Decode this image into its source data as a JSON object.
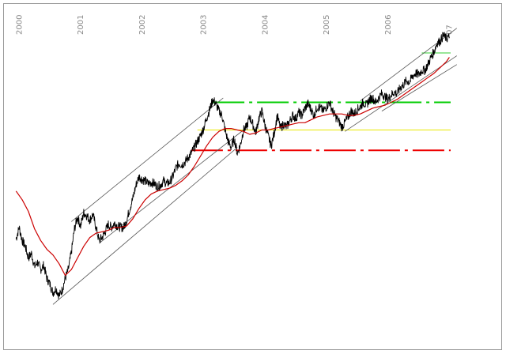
{
  "chart_data": {
    "type": "line",
    "title": "",
    "xlabel": "",
    "ylabel": "",
    "x_range": [
      1999.97,
      2007.07
    ],
    "y_range": [
      0,
      100
    ],
    "grid": false,
    "legend": "none",
    "year_ticks": [
      {
        "year": 2000,
        "label": "2000"
      },
      {
        "year": 2001,
        "label": "2001"
      },
      {
        "year": 2002,
        "label": "2002"
      },
      {
        "year": 2003,
        "label": "2003"
      },
      {
        "year": 2004,
        "label": "2004"
      },
      {
        "year": 2005,
        "label": "2005"
      },
      {
        "year": 2006,
        "label": "2006"
      },
      {
        "year": 2007,
        "label": "07"
      }
    ],
    "series": [
      {
        "kind": "price",
        "color": "#000000",
        "values": [
          [
            2000.0,
            26.5
          ],
          [
            2000.05,
            30.5
          ],
          [
            2000.1,
            26.0
          ],
          [
            2000.15,
            24.0
          ],
          [
            2000.2,
            20.0
          ],
          [
            2000.25,
            21.5
          ],
          [
            2000.3,
            17.0
          ],
          [
            2000.35,
            18.5
          ],
          [
            2000.4,
            16.0
          ],
          [
            2000.45,
            17.5
          ],
          [
            2000.5,
            13.0
          ],
          [
            2000.55,
            11.0
          ],
          [
            2000.6,
            8.0
          ],
          [
            2000.65,
            9.5
          ],
          [
            2000.7,
            7.0
          ],
          [
            2000.75,
            9.0
          ],
          [
            2000.8,
            13.0
          ],
          [
            2000.85,
            16.0
          ],
          [
            2000.9,
            22.0
          ],
          [
            2000.95,
            30.0
          ],
          [
            2001.0,
            34.0
          ],
          [
            2001.05,
            31.0
          ],
          [
            2001.1,
            35.5
          ],
          [
            2001.15,
            34.5
          ],
          [
            2001.2,
            33.0
          ],
          [
            2001.25,
            35.0
          ],
          [
            2001.3,
            30.5
          ],
          [
            2001.35,
            26.0
          ],
          [
            2001.4,
            27.0
          ],
          [
            2001.45,
            29.0
          ],
          [
            2001.5,
            31.5
          ],
          [
            2001.55,
            30.5
          ],
          [
            2001.6,
            32.0
          ],
          [
            2001.65,
            31.0
          ],
          [
            2001.7,
            30.5
          ],
          [
            2001.75,
            30.5
          ],
          [
            2001.8,
            33.0
          ],
          [
            2001.85,
            37.0
          ],
          [
            2001.9,
            40.5
          ],
          [
            2001.95,
            45.0
          ],
          [
            2002.0,
            48.0
          ],
          [
            2002.05,
            47.0
          ],
          [
            2002.1,
            46.5
          ],
          [
            2002.15,
            45.5
          ],
          [
            2002.2,
            46.0
          ],
          [
            2002.25,
            45.5
          ],
          [
            2002.3,
            44.5
          ],
          [
            2002.35,
            45.0
          ],
          [
            2002.4,
            46.5
          ],
          [
            2002.45,
            45.5
          ],
          [
            2002.5,
            46.0
          ],
          [
            2002.55,
            48.0
          ],
          [
            2002.6,
            51.0
          ],
          [
            2002.65,
            52.5
          ],
          [
            2002.7,
            52.0
          ],
          [
            2002.75,
            53.0
          ],
          [
            2002.8,
            54.5
          ],
          [
            2002.85,
            56.0
          ],
          [
            2002.9,
            58.0
          ],
          [
            2002.95,
            60.0
          ],
          [
            2003.0,
            62.0
          ],
          [
            2003.05,
            64.5
          ],
          [
            2003.1,
            68.0
          ],
          [
            2003.15,
            71.0
          ],
          [
            2003.2,
            74.5
          ],
          [
            2003.25,
            73.0
          ],
          [
            2003.3,
            70.5
          ],
          [
            2003.35,
            69.0
          ],
          [
            2003.4,
            64.0
          ],
          [
            2003.45,
            60.0
          ],
          [
            2003.5,
            58.0
          ],
          [
            2003.55,
            61.0
          ],
          [
            2003.6,
            56.0
          ],
          [
            2003.65,
            59.0
          ],
          [
            2003.7,
            64.0
          ],
          [
            2003.75,
            65.0
          ],
          [
            2003.8,
            68.5
          ],
          [
            2003.85,
            66.0
          ],
          [
            2003.9,
            63.0
          ],
          [
            2003.95,
            68.0
          ],
          [
            2004.0,
            70.5
          ],
          [
            2004.05,
            65.5
          ],
          [
            2004.1,
            62.0
          ],
          [
            2004.15,
            58.5
          ],
          [
            2004.2,
            63.0
          ],
          [
            2004.25,
            69.0
          ],
          [
            2004.3,
            64.5
          ],
          [
            2004.35,
            66.0
          ],
          [
            2004.4,
            65.0
          ],
          [
            2004.45,
            67.0
          ],
          [
            2004.5,
            69.0
          ],
          [
            2004.55,
            68.0
          ],
          [
            2004.6,
            70.0
          ],
          [
            2004.65,
            69.0
          ],
          [
            2004.7,
            71.5
          ],
          [
            2004.75,
            73.0
          ],
          [
            2004.8,
            71.0
          ],
          [
            2004.85,
            69.0
          ],
          [
            2004.9,
            72.0
          ],
          [
            2004.95,
            71.5
          ],
          [
            2005.0,
            70.5
          ],
          [
            2005.05,
            72.0
          ],
          [
            2005.1,
            73.5
          ],
          [
            2005.15,
            70.5
          ],
          [
            2005.2,
            68.5
          ],
          [
            2005.25,
            67.0
          ],
          [
            2005.3,
            65.0
          ],
          [
            2005.35,
            66.5
          ],
          [
            2005.4,
            68.5
          ],
          [
            2005.45,
            70.5
          ],
          [
            2005.5,
            69.5
          ],
          [
            2005.55,
            71.0
          ],
          [
            2005.6,
            72.0
          ],
          [
            2005.65,
            73.5
          ],
          [
            2005.7,
            72.5
          ],
          [
            2005.75,
            74.5
          ],
          [
            2005.8,
            75.0
          ],
          [
            2005.85,
            73.5
          ],
          [
            2005.9,
            75.0
          ],
          [
            2005.95,
            76.5
          ],
          [
            2006.0,
            75.5
          ],
          [
            2006.05,
            74.5
          ],
          [
            2006.1,
            76.0
          ],
          [
            2006.15,
            77.0
          ],
          [
            2006.2,
            76.5
          ],
          [
            2006.25,
            78.5
          ],
          [
            2006.3,
            79.5
          ],
          [
            2006.35,
            81.0
          ],
          [
            2006.4,
            80.5
          ],
          [
            2006.45,
            82.5
          ],
          [
            2006.5,
            83.5
          ],
          [
            2006.55,
            83.0
          ],
          [
            2006.6,
            84.5
          ],
          [
            2006.65,
            84.5
          ],
          [
            2006.7,
            86.5
          ],
          [
            2006.75,
            89.0
          ],
          [
            2006.8,
            91.0
          ],
          [
            2006.85,
            94.0
          ],
          [
            2006.9,
            94.5
          ],
          [
            2006.95,
            96.5
          ],
          [
            2007.0,
            95.5
          ],
          [
            2007.05,
            96.0
          ]
        ]
      },
      {
        "kind": "moving-average",
        "color": "#cc0000",
        "values": [
          [
            2000.0,
            43.0
          ],
          [
            2000.1,
            40.0
          ],
          [
            2000.2,
            36.0
          ],
          [
            2000.3,
            30.0
          ],
          [
            2000.4,
            26.0
          ],
          [
            2000.5,
            23.0
          ],
          [
            2000.6,
            21.0
          ],
          [
            2000.7,
            18.0
          ],
          [
            2000.8,
            14.0
          ],
          [
            2000.9,
            16.0
          ],
          [
            2001.0,
            20.0
          ],
          [
            2001.1,
            24.0
          ],
          [
            2001.2,
            27.0
          ],
          [
            2001.3,
            28.5
          ],
          [
            2001.4,
            29.0
          ],
          [
            2001.5,
            29.5
          ],
          [
            2001.6,
            30.5
          ],
          [
            2001.7,
            30.5
          ],
          [
            2001.8,
            31.0
          ],
          [
            2001.9,
            33.5
          ],
          [
            2002.0,
            37.0
          ],
          [
            2002.1,
            40.0
          ],
          [
            2002.2,
            42.0
          ],
          [
            2002.3,
            43.0
          ],
          [
            2002.4,
            43.5
          ],
          [
            2002.5,
            44.0
          ],
          [
            2002.6,
            45.0
          ],
          [
            2002.7,
            46.5
          ],
          [
            2002.8,
            48.5
          ],
          [
            2002.9,
            51.5
          ],
          [
            2003.0,
            55.0
          ],
          [
            2003.1,
            58.5
          ],
          [
            2003.2,
            61.5
          ],
          [
            2003.3,
            63.5
          ],
          [
            2003.4,
            64.5
          ],
          [
            2003.5,
            64.5
          ],
          [
            2003.6,
            64.0
          ],
          [
            2003.7,
            63.5
          ],
          [
            2003.8,
            62.5
          ],
          [
            2003.9,
            63.0
          ],
          [
            2004.0,
            64.0
          ],
          [
            2004.1,
            64.0
          ],
          [
            2004.2,
            64.5
          ],
          [
            2004.3,
            65.0
          ],
          [
            2004.4,
            65.5
          ],
          [
            2004.5,
            66.0
          ],
          [
            2004.6,
            66.5
          ],
          [
            2004.7,
            66.5
          ],
          [
            2004.8,
            67.5
          ],
          [
            2004.9,
            68.5
          ],
          [
            2005.0,
            69.0
          ],
          [
            2005.1,
            69.5
          ],
          [
            2005.2,
            69.5
          ],
          [
            2005.3,
            69.5
          ],
          [
            2005.4,
            69.0
          ],
          [
            2005.5,
            69.0
          ],
          [
            2005.6,
            69.5
          ],
          [
            2005.7,
            70.5
          ],
          [
            2005.8,
            71.5
          ],
          [
            2005.9,
            72.0
          ],
          [
            2006.0,
            72.5
          ],
          [
            2006.1,
            73.5
          ],
          [
            2006.2,
            74.5
          ],
          [
            2006.3,
            76.0
          ],
          [
            2006.4,
            77.5
          ],
          [
            2006.5,
            79.0
          ],
          [
            2006.6,
            80.5
          ],
          [
            2006.7,
            82.0
          ],
          [
            2006.8,
            83.5
          ],
          [
            2006.9,
            85.5
          ],
          [
            2007.0,
            87.5
          ],
          [
            2007.05,
            89.0
          ]
        ]
      }
    ],
    "reference_lines": [
      {
        "kind": "resistance",
        "color": "#00cc00",
        "style": "dash-dot",
        "y": 73.5,
        "x_start": 2003.2,
        "x_end": 2007.07
      },
      {
        "kind": "support",
        "color": "#ee0000",
        "style": "dash-dot",
        "y": 57.0,
        "x_start": 2002.85,
        "x_end": 2007.07
      },
      {
        "kind": "level",
        "color": "#e8e800",
        "style": "solid",
        "y": 64.0,
        "x_start": 2002.95,
        "x_end": 2007.07
      },
      {
        "kind": "target",
        "color": "#33cc33",
        "style": "solid",
        "y": 90.5,
        "x_start": 2006.6,
        "x_end": 2007.07
      }
    ],
    "trend_channels": [
      {
        "color": "#555555",
        "points": [
          [
            2000.9,
            32.5
          ],
          [
            2003.37,
            75.0
          ]
        ]
      },
      {
        "color": "#555555",
        "points": [
          [
            2001.35,
            25.0
          ],
          [
            2003.7,
            64.0
          ]
        ]
      },
      {
        "color": "#555555",
        "points": [
          [
            2000.6,
            4.0
          ],
          [
            2003.6,
            58.0
          ]
        ]
      },
      {
        "color": "#555555",
        "points": [
          [
            2005.6,
            74.0
          ],
          [
            2007.17,
            99.0
          ]
        ]
      },
      {
        "color": "#555555",
        "points": [
          [
            2005.35,
            63.5
          ],
          [
            2007.17,
            89.5
          ]
        ]
      },
      {
        "color": "#555555",
        "points": [
          [
            2005.95,
            70.5
          ],
          [
            2007.17,
            86.5
          ]
        ]
      }
    ]
  }
}
